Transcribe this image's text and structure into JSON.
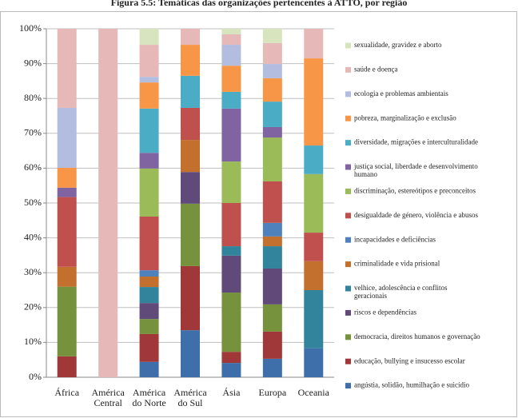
{
  "chart_data": {
    "type": "stacked_bar_100",
    "title": "Figura 5.5: Temáticas das organizações pertencentes à ATTO, por região",
    "categories": [
      "África",
      "América Central",
      "América do Norte",
      "América do Sul",
      "Ásia",
      "Europa",
      "Oceania"
    ],
    "ylim": [
      0,
      100
    ],
    "yticks": [
      {
        "value": 0,
        "label": "0%"
      },
      {
        "value": 10,
        "label": "10%"
      },
      {
        "value": 20,
        "label": "20%"
      },
      {
        "value": 30,
        "label": "30%"
      },
      {
        "value": 40,
        "label": "40%"
      },
      {
        "value": 50,
        "label": "50%"
      },
      {
        "value": 60,
        "label": "60%"
      },
      {
        "value": 70,
        "label": "70%"
      },
      {
        "value": 80,
        "label": "80%"
      },
      {
        "value": 90,
        "label": "90%"
      },
      {
        "value": 100,
        "label": "100%"
      }
    ],
    "grid": true,
    "legend": "right",
    "series": [
      {
        "name": "angústia, solidão, humilhação e suicídio",
        "color": "#3f6faa",
        "values": [
          0,
          0,
          4.4,
          13.5,
          4.1,
          5.3,
          8.3
        ]
      },
      {
        "name": "educação, bullying e insucesso escolar",
        "color": "#a0383a",
        "values": [
          6,
          0,
          8,
          18.4,
          3.2,
          7.8,
          0
        ]
      },
      {
        "name": "democracia, direitos humanos e governação",
        "color": "#76923c",
        "values": [
          20,
          0,
          4.3,
          17.9,
          17,
          7.8,
          0
        ]
      },
      {
        "name": "riscos e dependências",
        "color": "#5f4a7a",
        "values": [
          0,
          0,
          4.6,
          9.1,
          10.6,
          10.3,
          0
        ]
      },
      {
        "name": "velhice, adolescência e conflitos geracionais",
        "color": "#31849b",
        "values": [
          0,
          0,
          4.6,
          0,
          2.7,
          6.4,
          16.7
        ]
      },
      {
        "name": "criminalidade e vida prisional",
        "color": "#c3702f",
        "values": [
          5.7,
          0,
          3,
          9.2,
          0,
          2.8,
          8.3
        ]
      },
      {
        "name": "incapacidades e deficiências",
        "color": "#4f81bd",
        "values": [
          0,
          0,
          1.8,
          0,
          0,
          3.9,
          0
        ]
      },
      {
        "name": "desigualdade de género, violência e abusos",
        "color": "#c0504d",
        "values": [
          20,
          0,
          15.4,
          9.2,
          12.4,
          11.9,
          8.2
        ]
      },
      {
        "name": "discriminação, estereótipos e preconceitos",
        "color": "#9bbb59",
        "values": [
          0,
          0,
          13.8,
          0,
          11.9,
          12.6,
          16.8
        ]
      },
      {
        "name": "justiça social, liberdade e desenvolvimento humano",
        "color": "#8064a2",
        "values": [
          2.7,
          0,
          4.5,
          0,
          15.2,
          3,
          0
        ]
      },
      {
        "name": "diversidade, migrações e interculturalidade",
        "color": "#4bacc6",
        "values": [
          0,
          0,
          12.7,
          9.2,
          4.8,
          7.3,
          8.2
        ]
      },
      {
        "name": "pobreza, marginalização e exclusão",
        "color": "#f79646",
        "values": [
          5.7,
          0,
          7.5,
          8.9,
          7.5,
          6.7,
          25
        ]
      },
      {
        "name": "ecologia e problemas ambientais",
        "color": "#b3bde0",
        "values": [
          17.2,
          0,
          1.6,
          0,
          6,
          4.1,
          0
        ]
      },
      {
        "name": "saúde e doença",
        "color": "#e6b9b8",
        "values": [
          22.7,
          100,
          9.2,
          4.6,
          3,
          6,
          8.5
        ]
      },
      {
        "name": "sexualidade, gravidez e aborto",
        "color": "#d7e4bd",
        "values": [
          0,
          0,
          4.6,
          0,
          1.6,
          4.1,
          0
        ]
      }
    ]
  }
}
